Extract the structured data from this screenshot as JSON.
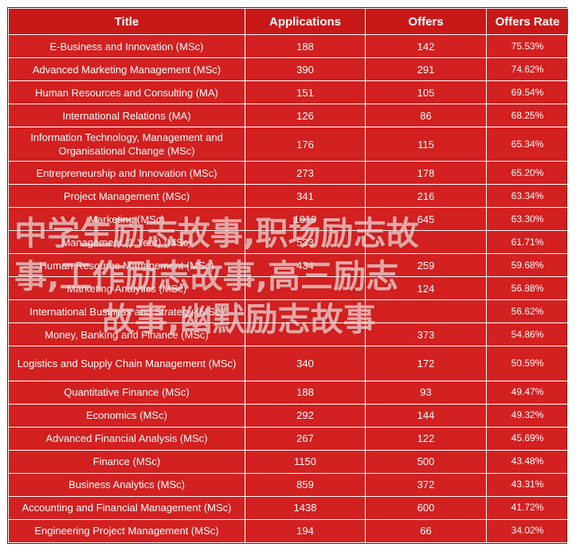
{
  "table": {
    "headers": [
      "Title",
      "Applications",
      "Offers",
      "Offers  Rate"
    ],
    "rows": [
      [
        "E-Business and Innovation (MSc)",
        "188",
        "142",
        "75.53%"
      ],
      [
        "Advanced Marketing Management (MSc)",
        "390",
        "291",
        "74.62%"
      ],
      [
        "Human Resources and Consulting (MA)",
        "151",
        "105",
        "69.54%"
      ],
      [
        "International Relations (MA)",
        "126",
        "86",
        "68.25%"
      ],
      [
        "Information Technology, Management and Organisational Change (MSc)",
        "176",
        "115",
        "65.34%"
      ],
      [
        "Entrepreneurship and Innovation (MSc)",
        "273",
        "178",
        "65.20%"
      ],
      [
        "Project Management (MSc)",
        "341",
        "216",
        "63.34%"
      ],
      [
        "Marketing (MSc)",
        "1019",
        "645",
        "63.30%"
      ],
      [
        "Management (1 Year) (MSc)",
        "533",
        "",
        "61.71%"
      ],
      [
        "Human Resource Management (MSc)",
        "434",
        "259",
        "59.68%"
      ],
      [
        "Marketing Analytics (MSc)",
        "",
        "124",
        "56.88%"
      ],
      [
        "International Business and Strategy (MSc)",
        "",
        "",
        "56.62%"
      ],
      [
        "Money, Banking and Finance (MSc)",
        "",
        "373",
        "54.86%"
      ],
      [
        "Logistics and Supply Chain Management (MSc)",
        "340",
        "172",
        "50.59%"
      ],
      [
        "Quantitative Finance (MSc)",
        "188",
        "93",
        "49.47%"
      ],
      [
        "Economics (MSc)",
        "292",
        "144",
        "49.32%"
      ],
      [
        "Advanced Financial Analysis (MSc)",
        "267",
        "122",
        "45.69%"
      ],
      [
        "Finance (MSc)",
        "1150",
        "500",
        "43.48%"
      ],
      [
        "Business Analytics (MSc)",
        "859",
        "372",
        "43.31%"
      ],
      [
        "Accounting and Financial Management (MSc)",
        "1438",
        "600",
        "41.72%"
      ],
      [
        "Engineering Project Management (MSc)",
        "194",
        "66",
        "34.02%"
      ]
    ]
  },
  "watermark": {
    "line1": "中学生励志故事,职场励志故",
    "line2": "事,工作励志故事,高三励志",
    "line3": "故事,幽默励志故事"
  },
  "colors": {
    "cell_background": "#d32020",
    "header_background": "#c81818",
    "border": "#ffffff",
    "text": "#ffffff"
  }
}
